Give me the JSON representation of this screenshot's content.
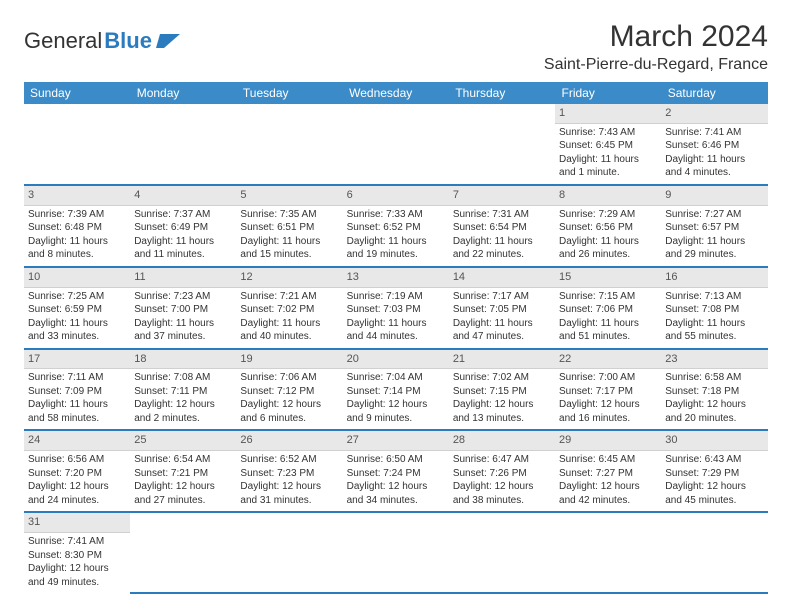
{
  "logo": {
    "part1": "General",
    "part2": "Blue"
  },
  "title": "March 2024",
  "location": "Saint-Pierre-du-Regard, France",
  "colors": {
    "header_bg": "#3b8bc8",
    "header_text": "#ffffff",
    "daynum_bg": "#e8e8e8",
    "row_border": "#2b7bbf",
    "text": "#333333",
    "logo_blue": "#2b7bbf"
  },
  "dayNames": [
    "Sunday",
    "Monday",
    "Tuesday",
    "Wednesday",
    "Thursday",
    "Friday",
    "Saturday"
  ],
  "weeks": [
    [
      null,
      null,
      null,
      null,
      null,
      {
        "n": "1",
        "sr": "7:43 AM",
        "ss": "6:45 PM",
        "dl": "11 hours and 1 minute."
      },
      {
        "n": "2",
        "sr": "7:41 AM",
        "ss": "6:46 PM",
        "dl": "11 hours and 4 minutes."
      }
    ],
    [
      {
        "n": "3",
        "sr": "7:39 AM",
        "ss": "6:48 PM",
        "dl": "11 hours and 8 minutes."
      },
      {
        "n": "4",
        "sr": "7:37 AM",
        "ss": "6:49 PM",
        "dl": "11 hours and 11 minutes."
      },
      {
        "n": "5",
        "sr": "7:35 AM",
        "ss": "6:51 PM",
        "dl": "11 hours and 15 minutes."
      },
      {
        "n": "6",
        "sr": "7:33 AM",
        "ss": "6:52 PM",
        "dl": "11 hours and 19 minutes."
      },
      {
        "n": "7",
        "sr": "7:31 AM",
        "ss": "6:54 PM",
        "dl": "11 hours and 22 minutes."
      },
      {
        "n": "8",
        "sr": "7:29 AM",
        "ss": "6:56 PM",
        "dl": "11 hours and 26 minutes."
      },
      {
        "n": "9",
        "sr": "7:27 AM",
        "ss": "6:57 PM",
        "dl": "11 hours and 29 minutes."
      }
    ],
    [
      {
        "n": "10",
        "sr": "7:25 AM",
        "ss": "6:59 PM",
        "dl": "11 hours and 33 minutes."
      },
      {
        "n": "11",
        "sr": "7:23 AM",
        "ss": "7:00 PM",
        "dl": "11 hours and 37 minutes."
      },
      {
        "n": "12",
        "sr": "7:21 AM",
        "ss": "7:02 PM",
        "dl": "11 hours and 40 minutes."
      },
      {
        "n": "13",
        "sr": "7:19 AM",
        "ss": "7:03 PM",
        "dl": "11 hours and 44 minutes."
      },
      {
        "n": "14",
        "sr": "7:17 AM",
        "ss": "7:05 PM",
        "dl": "11 hours and 47 minutes."
      },
      {
        "n": "15",
        "sr": "7:15 AM",
        "ss": "7:06 PM",
        "dl": "11 hours and 51 minutes."
      },
      {
        "n": "16",
        "sr": "7:13 AM",
        "ss": "7:08 PM",
        "dl": "11 hours and 55 minutes."
      }
    ],
    [
      {
        "n": "17",
        "sr": "7:11 AM",
        "ss": "7:09 PM",
        "dl": "11 hours and 58 minutes."
      },
      {
        "n": "18",
        "sr": "7:08 AM",
        "ss": "7:11 PM",
        "dl": "12 hours and 2 minutes."
      },
      {
        "n": "19",
        "sr": "7:06 AM",
        "ss": "7:12 PM",
        "dl": "12 hours and 6 minutes."
      },
      {
        "n": "20",
        "sr": "7:04 AM",
        "ss": "7:14 PM",
        "dl": "12 hours and 9 minutes."
      },
      {
        "n": "21",
        "sr": "7:02 AM",
        "ss": "7:15 PM",
        "dl": "12 hours and 13 minutes."
      },
      {
        "n": "22",
        "sr": "7:00 AM",
        "ss": "7:17 PM",
        "dl": "12 hours and 16 minutes."
      },
      {
        "n": "23",
        "sr": "6:58 AM",
        "ss": "7:18 PM",
        "dl": "12 hours and 20 minutes."
      }
    ],
    [
      {
        "n": "24",
        "sr": "6:56 AM",
        "ss": "7:20 PM",
        "dl": "12 hours and 24 minutes."
      },
      {
        "n": "25",
        "sr": "6:54 AM",
        "ss": "7:21 PM",
        "dl": "12 hours and 27 minutes."
      },
      {
        "n": "26",
        "sr": "6:52 AM",
        "ss": "7:23 PM",
        "dl": "12 hours and 31 minutes."
      },
      {
        "n": "27",
        "sr": "6:50 AM",
        "ss": "7:24 PM",
        "dl": "12 hours and 34 minutes."
      },
      {
        "n": "28",
        "sr": "6:47 AM",
        "ss": "7:26 PM",
        "dl": "12 hours and 38 minutes."
      },
      {
        "n": "29",
        "sr": "6:45 AM",
        "ss": "7:27 PM",
        "dl": "12 hours and 42 minutes."
      },
      {
        "n": "30",
        "sr": "6:43 AM",
        "ss": "7:29 PM",
        "dl": "12 hours and 45 minutes."
      }
    ],
    [
      {
        "n": "31",
        "sr": "7:41 AM",
        "ss": "8:30 PM",
        "dl": "12 hours and 49 minutes."
      },
      null,
      null,
      null,
      null,
      null,
      null
    ]
  ],
  "labels": {
    "sunrise": "Sunrise:",
    "sunset": "Sunset:",
    "daylight": "Daylight:"
  }
}
